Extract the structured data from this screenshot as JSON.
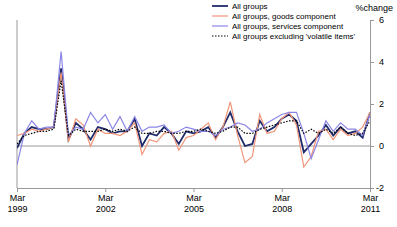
{
  "chart_data": {
    "type": "line",
    "y_label": "%change",
    "categories": [
      "Mar 1999",
      null,
      null,
      null,
      null,
      null,
      null,
      null,
      null,
      null,
      null,
      null,
      "Mar 2002",
      null,
      null,
      null,
      null,
      null,
      null,
      null,
      null,
      null,
      null,
      null,
      "Mar 2005",
      null,
      null,
      null,
      null,
      null,
      null,
      null,
      null,
      null,
      null,
      null,
      "Mar 2008",
      null,
      null,
      null,
      null,
      null,
      null,
      null,
      null,
      null,
      null,
      null,
      "Mar 2011"
    ],
    "ylim": [
      -2,
      6
    ],
    "yticks": [
      -2,
      0,
      2,
      4,
      6
    ],
    "legend": "upper right",
    "series": [
      {
        "name": "All groups",
        "color": "#1f2a6b",
        "line_style": "solid",
        "values": [
          -0.1,
          0.6,
          0.9,
          0.8,
          0.8,
          0.9,
          3.7,
          0.3,
          1.1,
          0.8,
          0.3,
          0.9,
          0.8,
          0.6,
          0.7,
          0.7,
          1.3,
          0.0,
          0.6,
          0.5,
          0.9,
          0.6,
          0.1,
          0.7,
          0.6,
          0.7,
          0.9,
          0.4,
          0.9,
          1.6,
          0.7,
          0.0,
          0.1,
          1.2,
          0.7,
          0.9,
          1.3,
          1.5,
          1.2,
          -0.3,
          0.1,
          0.5,
          1.0,
          0.5,
          0.9,
          0.6,
          0.7,
          0.4,
          1.6
        ]
      },
      {
        "name": "All groups, goods component",
        "color": "#f0957a",
        "line_style": "solid",
        "values": [
          0.5,
          0.6,
          0.8,
          0.7,
          0.8,
          0.9,
          3.5,
          0.2,
          1.3,
          1.0,
          0.0,
          0.8,
          0.6,
          0.6,
          0.5,
          0.7,
          1.1,
          -0.4,
          0.3,
          0.2,
          0.6,
          0.7,
          -0.2,
          0.4,
          0.5,
          0.8,
          1.1,
          0.3,
          0.9,
          2.1,
          0.5,
          -0.8,
          -0.5,
          1.5,
          0.6,
          0.7,
          1.3,
          1.6,
          1.0,
          -1.0,
          -0.5,
          0.7,
          0.8,
          0.3,
          0.8,
          0.5,
          0.6,
          0.9,
          1.6
        ]
      },
      {
        "name": "All groups, services component",
        "color": "#8b86e6",
        "line_style": "solid",
        "values": [
          -0.9,
          0.6,
          1.2,
          0.8,
          0.9,
          0.9,
          4.5,
          0.5,
          0.9,
          0.8,
          1.6,
          1.1,
          1.5,
          0.8,
          1.4,
          0.7,
          1.4,
          0.7,
          0.9,
          0.9,
          1.0,
          0.6,
          0.7,
          0.9,
          0.8,
          0.7,
          0.7,
          0.5,
          0.8,
          0.9,
          1.1,
          1.0,
          0.7,
          0.8,
          1.1,
          1.3,
          1.5,
          1.6,
          1.6,
          0.6,
          -0.6,
          0.3,
          1.2,
          0.7,
          1.1,
          0.8,
          0.8,
          0.5,
          1.5
        ]
      },
      {
        "name": "All groups excluding 'volatile items'",
        "color": "#000000",
        "line_style": "dotted",
        "values": [
          0.1,
          0.5,
          0.6,
          0.7,
          0.7,
          0.8,
          3.1,
          0.5,
          0.8,
          0.7,
          0.7,
          0.7,
          0.8,
          0.7,
          0.8,
          0.7,
          0.9,
          0.6,
          0.6,
          0.7,
          0.7,
          0.6,
          0.6,
          0.7,
          0.7,
          0.8,
          0.7,
          0.6,
          0.7,
          0.9,
          0.9,
          0.6,
          0.6,
          0.8,
          0.9,
          1.0,
          1.1,
          1.2,
          1.2,
          0.6,
          0.8,
          0.6,
          0.8,
          0.6,
          0.9,
          0.6,
          0.5,
          0.6,
          1.2
        ]
      }
    ]
  }
}
